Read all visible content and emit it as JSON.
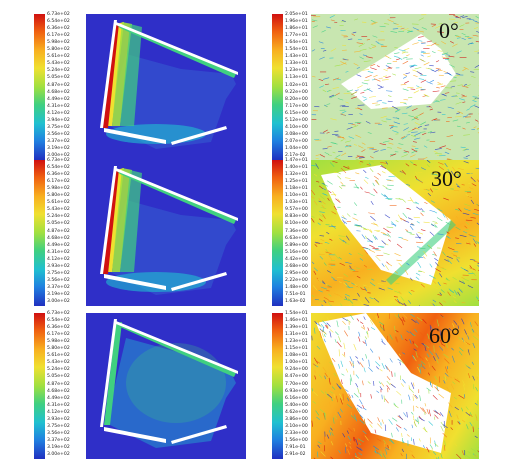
{
  "rows": [
    {
      "angle_label": "0°",
      "temp_scale": [
        "6.73e+02",
        "6.54e+02",
        "6.36e+02",
        "6.17e+02",
        "5.98e+02",
        "5.80e+02",
        "5.61e+02",
        "5.43e+02",
        "5.24e+02",
        "5.05e+02",
        "4.87e+02",
        "4.68e+02",
        "4.49e+02",
        "4.31e+02",
        "4.12e+02",
        "3.94e+02",
        "3.75e+02",
        "3.56e+02",
        "3.37e+02",
        "3.19e+02",
        "3.00e+02"
      ],
      "vel_scale": [
        "2.05e+01",
        "1.96e+01",
        "1.86e+01",
        "1.77e+01",
        "1.64e+01",
        "1.54e+01",
        "1.43e+01",
        "1.33e+01",
        "1.23e+01",
        "1.13e+01",
        "1.02e+01",
        "9.22e+00",
        "8.20e+00",
        "7.17e+00",
        "6.15e+00",
        "5.12e+00",
        "4.10e+00",
        "3.08e+00",
        "2.07e+00",
        "1.04e+00",
        "2.17e-02"
      ]
    },
    {
      "angle_label": "30°",
      "temp_scale": [
        "6.73e+02",
        "6.54e+02",
        "6.36e+02",
        "6.17e+02",
        "5.98e+02",
        "5.80e+02",
        "5.61e+02",
        "5.43e+02",
        "5.24e+02",
        "5.05e+02",
        "4.87e+02",
        "4.68e+02",
        "4.49e+02",
        "4.31e+02",
        "4.12e+02",
        "3.93e+02",
        "3.75e+02",
        "3.56e+02",
        "3.37e+02",
        "3.19e+02",
        "3.00e+02"
      ],
      "vel_scale": [
        "1.47e+01",
        "1.40e+01",
        "1.32e+01",
        "1.25e+01",
        "1.18e+01",
        "1.10e+01",
        "1.03e+01",
        "9.57e+00",
        "8.83e+00",
        "8.10e+00",
        "7.36e+00",
        "6.63e+00",
        "5.89e+00",
        "5.16e+00",
        "4.42e+00",
        "3.68e+00",
        "2.95e+00",
        "2.22e+00",
        "1.48e+00",
        "7.51e-01",
        "1.63e-02"
      ]
    },
    {
      "angle_label": "60°",
      "temp_scale": [
        "6.73e+02",
        "6.54e+02",
        "6.36e+02",
        "6.17e+02",
        "5.98e+02",
        "5.80e+02",
        "5.61e+02",
        "5.43e+02",
        "5.24e+02",
        "5.05e+02",
        "4.87e+02",
        "4.68e+02",
        "4.49e+02",
        "4.31e+02",
        "4.12e+02",
        "3.93e+02",
        "3.75e+02",
        "3.56e+02",
        "3.37e+02",
        "3.19e+02",
        "3.00e+02"
      ],
      "vel_scale": [
        "1.54e+01",
        "1.46e+01",
        "1.39e+01",
        "1.31e+01",
        "1.23e+01",
        "1.15e+01",
        "1.08e+01",
        "1.00e+01",
        "9.24e+00",
        "8.47e+00",
        "7.70e+00",
        "6.93e+00",
        "6.16e+00",
        "5.40e+00",
        "4.62e+00",
        "3.86e+00",
        "3.10e+00",
        "2.33e+00",
        "1.56e+00",
        "7.91e-01",
        "2.91e-02"
      ]
    }
  ],
  "colors": {
    "temp_background": "#2f2fc8",
    "colormap": [
      "#d01010",
      "#f06010",
      "#f8b020",
      "#f0e030",
      "#a0e040",
      "#40d080",
      "#20c0d0",
      "#2080e0",
      "#2030c0"
    ]
  }
}
